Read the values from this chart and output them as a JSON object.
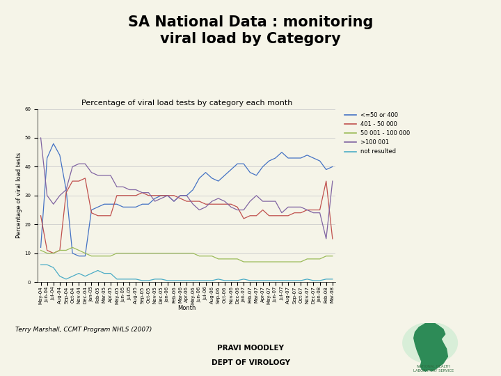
{
  "title": "SA National Data : monitoring\nviral load by Category",
  "chart_title": "Percentage of viral load tests by category each month",
  "xlabel": "Month",
  "ylabel": "Percentage of viral load tests",
  "ylim": [
    0,
    60
  ],
  "yticks": [
    0,
    10,
    20,
    30,
    40,
    50,
    60
  ],
  "background_color": "#f5f4e8",
  "legend_labels": [
    "<=50 or 400",
    "401 - 50 000",
    "50 001 - 100 000",
    ">100 001",
    "not resulted"
  ],
  "line_colors": [
    "#4472c4",
    "#c0504d",
    "#9bbb59",
    "#8064a2",
    "#4bacc6"
  ],
  "months": [
    "May-04",
    "Jun-04",
    "Jul-04",
    "Aug-04",
    "Sep-04",
    "Oct-04",
    "Nov-04",
    "Dec-04",
    "Jan-05",
    "Feb-05",
    "Mar-05",
    "Apr-05",
    "May-05",
    "Jun-05",
    "Jul-05",
    "Aug-05",
    "Sep-05",
    "Oct-05",
    "Nov-05",
    "Dec-05",
    "Jan-06",
    "Feb-06",
    "Mar-06",
    "Apr-06",
    "May-06",
    "Jun-06",
    "Jul-06",
    "Aug-06",
    "Sep-06",
    "Oct-06",
    "Nov-06",
    "Dec-06",
    "Jan-07",
    "Feb-07",
    "Mar-07",
    "Apr-07",
    "May-07",
    "Jun-07",
    "Jul-07",
    "Aug-07",
    "Sep-07",
    "Oct-07",
    "Nov-07",
    "Dec-07",
    "Jan-08",
    "Feb-08",
    "Mar-08"
  ],
  "series": {
    "le50or400": [
      12,
      43,
      48,
      44,
      32,
      10,
      9,
      9,
      25,
      26,
      27,
      27,
      27,
      26,
      26,
      26,
      27,
      27,
      29,
      30,
      30,
      28,
      30,
      30,
      32,
      36,
      38,
      36,
      35,
      37,
      39,
      41,
      41,
      38,
      37,
      40,
      42,
      43,
      45,
      43,
      43,
      43,
      44,
      43,
      42,
      39,
      40
    ],
    "401to50000": [
      23,
      11,
      10,
      11,
      31,
      35,
      35,
      36,
      24,
      23,
      23,
      23,
      30,
      30,
      30,
      30,
      31,
      30,
      30,
      30,
      30,
      30,
      29,
      28,
      28,
      28,
      27,
      27,
      27,
      27,
      27,
      26,
      22,
      23,
      23,
      25,
      23,
      23,
      23,
      23,
      24,
      24,
      25,
      25,
      25,
      35,
      15
    ],
    "50001to100000": [
      11,
      10,
      10,
      11,
      11,
      12,
      11,
      10,
      9,
      9,
      9,
      9,
      10,
      10,
      10,
      10,
      10,
      10,
      10,
      10,
      10,
      10,
      10,
      10,
      10,
      9,
      9,
      9,
      8,
      8,
      8,
      8,
      7,
      7,
      7,
      7,
      7,
      7,
      7,
      7,
      7,
      7,
      8,
      8,
      8,
      9,
      9
    ],
    "gt100001": [
      50,
      30,
      27,
      30,
      32,
      40,
      41,
      41,
      38,
      37,
      37,
      37,
      33,
      33,
      32,
      32,
      31,
      31,
      28,
      29,
      30,
      28,
      30,
      30,
      27,
      25,
      26,
      28,
      29,
      28,
      26,
      25,
      25,
      28,
      30,
      28,
      28,
      28,
      24,
      26,
      26,
      26,
      25,
      24,
      24,
      15,
      35
    ],
    "not_resulted": [
      6,
      6,
      5,
      2,
      1,
      2,
      3,
      2,
      3,
      4,
      3,
      3,
      1,
      1,
      1,
      1,
      0.5,
      0.5,
      1,
      1,
      0.5,
      0.5,
      0.5,
      0.5,
      0.5,
      0.5,
      0.5,
      0.5,
      1,
      0.5,
      0.5,
      0.5,
      1,
      0.5,
      0.5,
      0.5,
      0.5,
      0.5,
      0.5,
      0.5,
      0.5,
      0.5,
      1,
      0.5,
      0.5,
      1,
      1
    ]
  },
  "footnote": "Terry Marshall, CCMT Program NHLS (2007)",
  "bottom_center_text1": "PRAVI MOODLEY",
  "bottom_center_text2": "DEPT OF VIROLOGY",
  "title_fontsize": 15,
  "chart_title_fontsize": 8,
  "axis_label_fontsize": 6,
  "tick_fontsize": 5,
  "legend_fontsize": 6
}
